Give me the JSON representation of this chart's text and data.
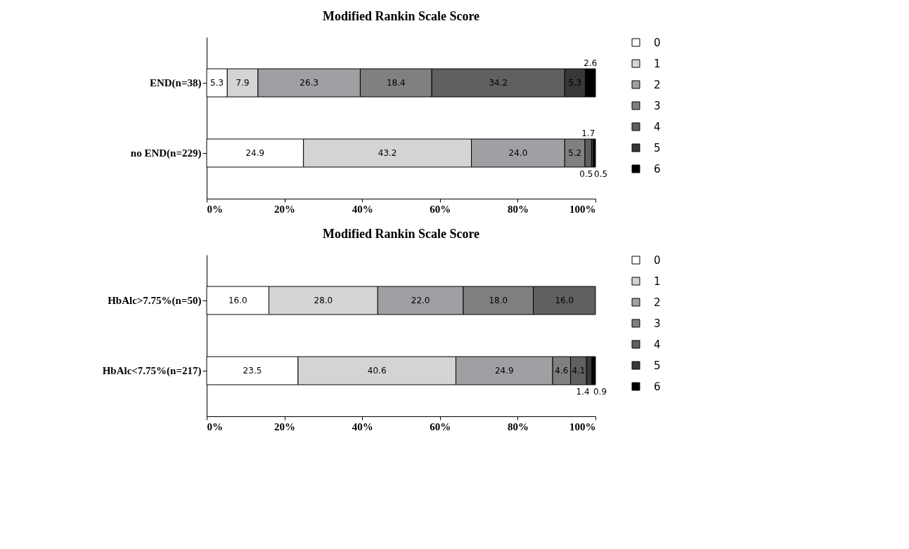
{
  "chart_data": [
    {
      "type": "bar",
      "title": "Modified Rankin Scale Score",
      "orientation": "horizontal",
      "stacked": true,
      "legend": "right",
      "categories": [
        "END(n=38)",
        "no END(n=229)"
      ],
      "xlim": [
        0,
        100
      ],
      "xticks": [
        {
          "value": 0,
          "label": "0%"
        },
        {
          "value": 20,
          "label": "20%"
        },
        {
          "value": 40,
          "label": "40%"
        },
        {
          "value": 60,
          "label": "60%"
        },
        {
          "value": 80,
          "label": "80%"
        },
        {
          "value": 100,
          "label": "100%"
        }
      ],
      "series": [
        {
          "name": "0",
          "color": "#ffffff",
          "values": [
            5.3,
            24.9
          ],
          "value_labels": [
            "5.3",
            "24.9"
          ]
        },
        {
          "name": "1",
          "color": "#d4d4d4",
          "values": [
            7.9,
            43.2
          ],
          "value_labels": [
            "7.9",
            "43.2"
          ]
        },
        {
          "name": "2",
          "color": "#a0a0a4",
          "values": [
            26.3,
            24.0
          ],
          "value_labels": [
            "26.3",
            "24.0"
          ]
        },
        {
          "name": "3",
          "color": "#808080",
          "values": [
            18.4,
            5.2
          ],
          "value_labels": [
            "18.4",
            "5.2"
          ]
        },
        {
          "name": "4",
          "color": "#606060",
          "values": [
            34.2,
            1.7
          ],
          "value_labels": [
            "34.2",
            "1.7"
          ]
        },
        {
          "name": "5",
          "color": "#383838",
          "values": [
            5.3,
            0.5
          ],
          "value_labels": [
            "5.3",
            "0.5"
          ]
        },
        {
          "name": "6",
          "color": "#000000",
          "values": [
            2.6,
            0.5
          ],
          "value_labels": [
            "2.6",
            "0.5"
          ]
        }
      ]
    },
    {
      "type": "bar",
      "title": "Modified Rankin Scale Score",
      "orientation": "horizontal",
      "stacked": true,
      "legend": "right",
      "categories": [
        "HbAlc>7.75%(n=50)",
        "HbAlc<7.75%(n=217)"
      ],
      "xlim": [
        0,
        100
      ],
      "xticks": [
        {
          "value": 0,
          "label": "0%"
        },
        {
          "value": 20,
          "label": "20%"
        },
        {
          "value": 40,
          "label": "40%"
        },
        {
          "value": 60,
          "label": "60%"
        },
        {
          "value": 80,
          "label": "80%"
        },
        {
          "value": 100,
          "label": "100%"
        }
      ],
      "series": [
        {
          "name": "0",
          "color": "#ffffff",
          "values": [
            16.0,
            23.5
          ],
          "value_labels": [
            "16.0",
            "23.5"
          ]
        },
        {
          "name": "1",
          "color": "#d4d4d4",
          "values": [
            28.0,
            40.6
          ],
          "value_labels": [
            "28.0",
            "40.6"
          ]
        },
        {
          "name": "2",
          "color": "#a0a0a4",
          "values": [
            22.0,
            24.9
          ],
          "value_labels": [
            "22.0",
            "24.9"
          ]
        },
        {
          "name": "3",
          "color": "#808080",
          "values": [
            18.0,
            4.6
          ],
          "value_labels": [
            "18.0",
            "4.6"
          ]
        },
        {
          "name": "4",
          "color": "#606060",
          "values": [
            16.0,
            4.1
          ],
          "value_labels": [
            "16.0",
            "4.1"
          ]
        },
        {
          "name": "5",
          "color": "#383838",
          "values": [
            null,
            1.4
          ],
          "value_labels": [
            null,
            "1.4"
          ]
        },
        {
          "name": "6",
          "color": "#000000",
          "values": [
            null,
            0.9
          ],
          "value_labels": [
            null,
            "0.9"
          ]
        }
      ]
    }
  ]
}
